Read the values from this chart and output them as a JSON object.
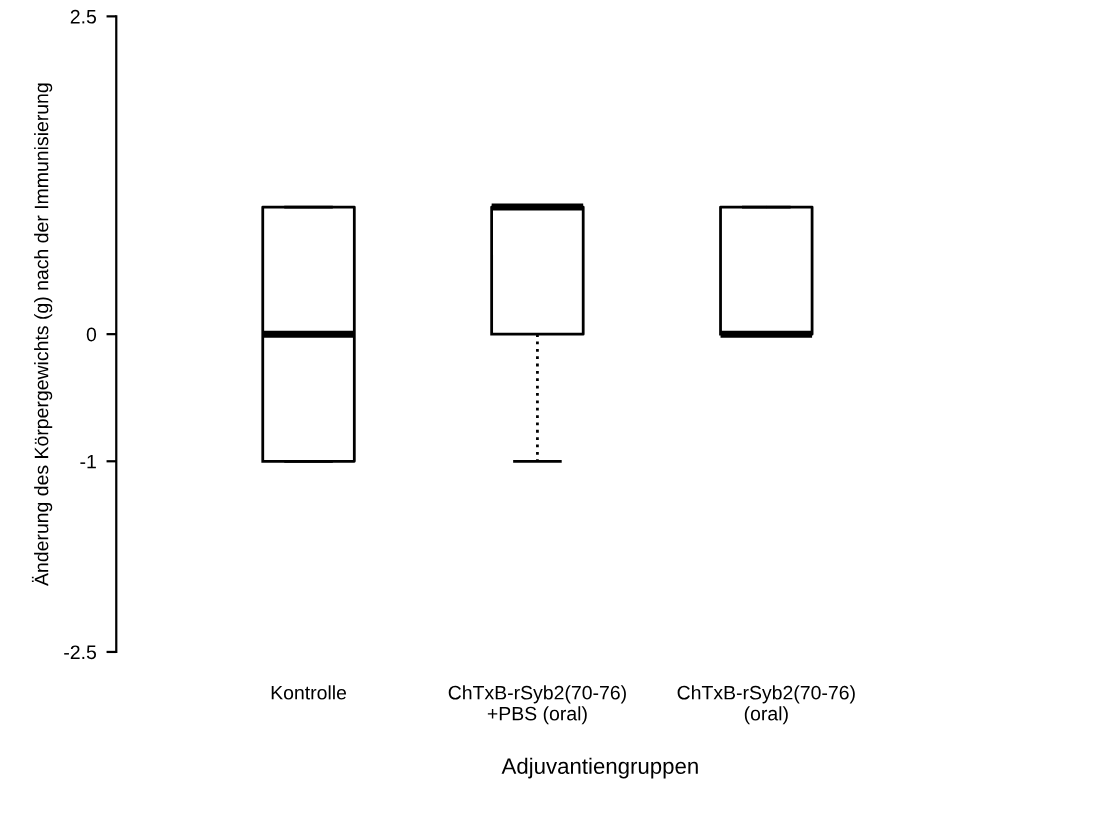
{
  "chart_data": {
    "type": "box",
    "ylabel": "Änderung des Körpergewichts (g) nach der Immunisierung",
    "xlabel": "Adjuvantiengruppen",
    "categories": [
      "Kontrolle",
      "ChTxB-rSyb2(70-76)\n+PBS (oral)",
      "ChTxB-rSyb2(70-76)\n(oral)"
    ],
    "boxes": [
      {
        "low": -1,
        "q1": -1,
        "median": 0,
        "q3": 1,
        "high": 1
      },
      {
        "low": -1,
        "q1": 0,
        "median": 1,
        "q3": 1,
        "high": 1
      },
      {
        "low": 0,
        "q1": 0,
        "median": 0,
        "q3": 1,
        "high": 1
      }
    ],
    "color": "#000000",
    "ylim": [
      -2.5,
      2.5
    ],
    "yticks": [
      2.5,
      0,
      {
        "value": -1,
        "label": "-1"
      },
      -2.5
    ],
    "grid": false
  }
}
